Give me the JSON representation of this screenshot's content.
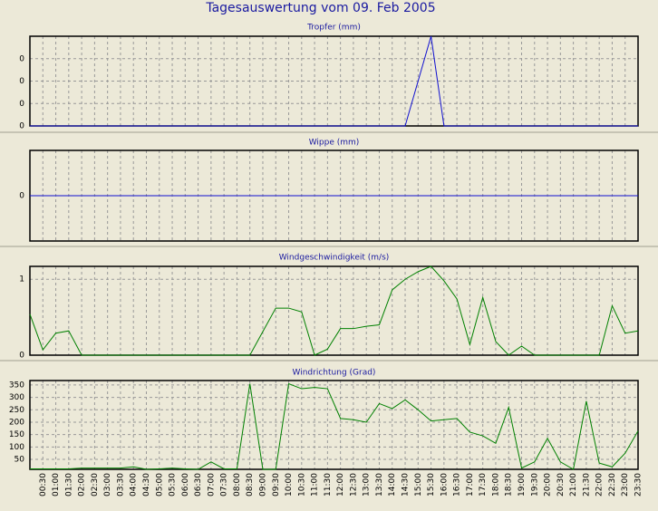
{
  "title": "Tagesauswertung vom 09. Feb 2005",
  "chart_data": [
    {
      "type": "line",
      "title": "Tropfer (mm)",
      "color": "#1010d0",
      "ylim": [
        0,
        0.4
      ],
      "yticks": [
        0,
        {
          "value": 0.1,
          "label": "0"
        },
        {
          "value": 0.2,
          "label": "0"
        },
        {
          "value": 0.3,
          "label": "0"
        }
      ],
      "values": [
        0,
        0,
        0,
        0,
        0,
        0,
        0,
        0,
        0,
        0,
        0,
        0,
        0,
        0,
        0,
        0,
        0,
        0,
        0,
        0,
        0,
        0,
        0,
        0,
        0,
        0,
        0,
        0,
        0,
        0,
        0.2,
        0.4,
        0,
        0,
        0,
        0,
        0,
        0,
        0,
        0,
        0,
        0,
        0,
        0,
        0,
        0,
        0,
        0
      ]
    },
    {
      "type": "line",
      "title": "Wippe (mm)",
      "color": "#1010d0",
      "ylim": [
        -1,
        1
      ],
      "yticks": [
        0
      ],
      "values": [
        0,
        0,
        0,
        0,
        0,
        0,
        0,
        0,
        0,
        0,
        0,
        0,
        0,
        0,
        0,
        0,
        0,
        0,
        0,
        0,
        0,
        0,
        0,
        0,
        0,
        0,
        0,
        0,
        0,
        0,
        0,
        0,
        0,
        0,
        0,
        0,
        0,
        0,
        0,
        0,
        0,
        0,
        0,
        0,
        0,
        0,
        0,
        0
      ]
    },
    {
      "type": "line",
      "title": "Windgeschwindigkeit (m/s)",
      "color": "#008000",
      "ylim": [
        0,
        1.17
      ],
      "yticks": [
        0,
        1
      ],
      "values": [
        0.54,
        0.07,
        0.29,
        0.32,
        0,
        0,
        0,
        0,
        0,
        0,
        0,
        0,
        0,
        0,
        0,
        0,
        0,
        0,
        0.31,
        0.62,
        0.62,
        0.57,
        0,
        0.08,
        0.35,
        0.35,
        0.38,
        0.4,
        0.86,
        1.0,
        1.1,
        1.17,
        0.98,
        0.74,
        0.14,
        0.76,
        0.18,
        0,
        0.12,
        0,
        0,
        0,
        0,
        0,
        0,
        0.65,
        0.29,
        0.32
      ]
    },
    {
      "type": "line",
      "title": "Windrichtung (Grad)",
      "color": "#008000",
      "ylim": [
        10,
        368
      ],
      "yticks": [
        50,
        100,
        150,
        200,
        250,
        300,
        350
      ],
      "values": [
        12,
        12,
        12,
        12,
        15,
        15,
        15,
        15,
        20,
        10,
        12,
        15,
        12,
        10,
        40,
        12,
        12,
        355,
        10,
        10,
        355,
        335,
        340,
        335,
        215,
        210,
        200,
        275,
        255,
        290,
        250,
        205,
        210,
        215,
        160,
        145,
        115,
        260,
        15,
        40,
        135,
        40,
        10,
        285,
        35,
        20,
        75,
        165
      ],
      "categories": [
        null,
        "00:30",
        "01:00",
        "01:30",
        "02:00",
        "02:30",
        "03:00",
        "03:30",
        "04:00",
        "04:30",
        "05:00",
        "05:30",
        "06:00",
        "06:30",
        "07:00",
        "07:30",
        "08:00",
        "08:30",
        "09:00",
        "09:30",
        "10:00",
        "10:30",
        "11:00",
        "11:30",
        "12:00",
        "12:30",
        "13:00",
        "13:30",
        "14:00",
        "14:30",
        "15:00",
        "15:30",
        "16:00",
        "16:30",
        "17:00",
        "17:30",
        "18:00",
        "18:30",
        "19:00",
        "19:30",
        "20:00",
        "20:30",
        "21:00",
        "21:30",
        "22:00",
        "22:30",
        "23:00",
        "23:30"
      ]
    }
  ]
}
